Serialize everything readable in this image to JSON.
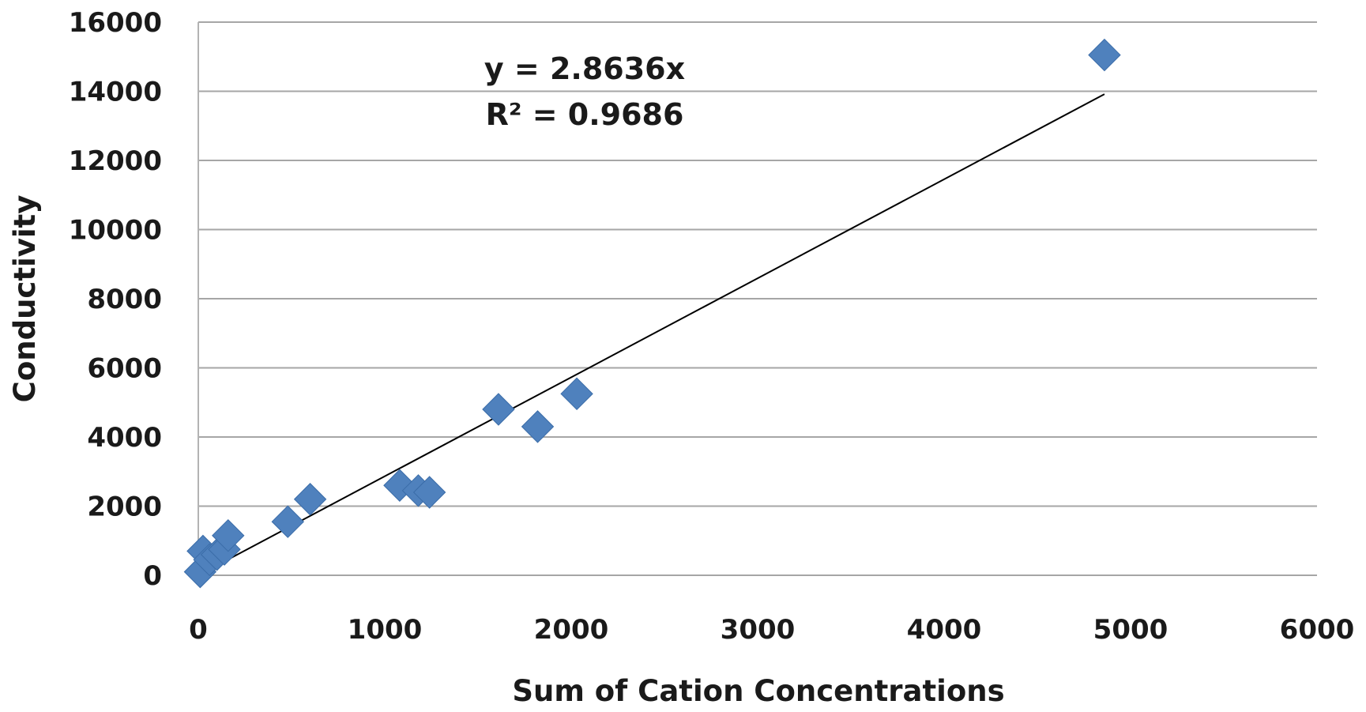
{
  "chart_data": {
    "type": "scatter",
    "xlabel": "Sum of Cation Concentrations",
    "ylabel": "Conductivity",
    "xlim": [
      0,
      6000
    ],
    "ylim": [
      0,
      16000
    ],
    "x_ticks": [
      "0",
      "1000",
      "2000",
      "3000",
      "4000",
      "5000",
      "6000"
    ],
    "y_ticks": [
      "0",
      "2000",
      "4000",
      "6000",
      "8000",
      "10000",
      "12000",
      "14000",
      "16000"
    ],
    "grid": "horizontal",
    "marker": "diamond",
    "series": [
      {
        "color": "#4F81BD",
        "points": [
          {
            "x": 10,
            "y": 100
          },
          {
            "x": 25,
            "y": 700
          },
          {
            "x": 60,
            "y": 450
          },
          {
            "x": 100,
            "y": 600
          },
          {
            "x": 140,
            "y": 750
          },
          {
            "x": 160,
            "y": 1150
          },
          {
            "x": 480,
            "y": 1550
          },
          {
            "x": 600,
            "y": 2200
          },
          {
            "x": 1080,
            "y": 2600
          },
          {
            "x": 1180,
            "y": 2450
          },
          {
            "x": 1240,
            "y": 2400
          },
          {
            "x": 1610,
            "y": 4800
          },
          {
            "x": 1820,
            "y": 4300
          },
          {
            "x": 2030,
            "y": 5250
          },
          {
            "x": 4860,
            "y": 15050
          }
        ]
      }
    ],
    "trendline": {
      "slope": 2.8636,
      "intercept": 0,
      "x_range": [
        40,
        4860
      ],
      "color": "#000000",
      "equation_label": "y = 2.8636x",
      "r2_label": "R² = 0.9686"
    }
  }
}
